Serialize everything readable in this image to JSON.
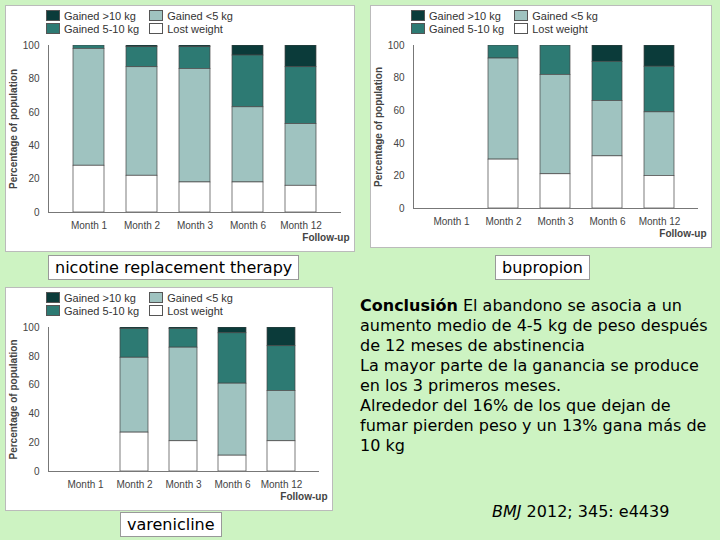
{
  "chart_data": [
    {
      "type": "bar",
      "stacked": true,
      "title": "nicotine replacement therapy",
      "legend": "top",
      "x_label": "Follow-up",
      "y_label": "Percentage of population",
      "categories": [
        "Month 1",
        "Month 2",
        "Month 3",
        "Month 6",
        "Month 12"
      ],
      "ylim": [
        0,
        100
      ],
      "yticks": [
        0,
        20,
        40,
        60,
        80,
        100
      ],
      "series": [
        {
          "name": "Gained >10 kg",
          "color": "#0b3b3a",
          "values": [
            0,
            1,
            1,
            6,
            13
          ]
        },
        {
          "name": "Gained 5-10 kg",
          "color": "#2d7a73",
          "values": [
            2,
            12,
            13,
            31,
            34
          ]
        },
        {
          "name": "Gained <5 kg",
          "color": "#9fc3c0",
          "values": [
            70,
            65,
            68,
            45,
            37
          ]
        },
        {
          "name": "Lost weight",
          "color": "#ffffff",
          "values": [
            28,
            22,
            18,
            18,
            16
          ]
        }
      ]
    },
    {
      "type": "bar",
      "stacked": true,
      "title": "bupropion",
      "legend": "top",
      "x_label": "Follow-up",
      "y_label": "Percentage of population",
      "categories": [
        "Month 1",
        "Month 2",
        "Month 3",
        "Month 6",
        "Month 12"
      ],
      "ylim": [
        0,
        100
      ],
      "yticks": [
        0,
        20,
        40,
        60,
        80,
        100
      ],
      "series": [
        {
          "name": "Gained >10 kg",
          "color": "#0b3b3a",
          "values": [
            null,
            0,
            0,
            10,
            13
          ]
        },
        {
          "name": "Gained 5-10 kg",
          "color": "#2d7a73",
          "values": [
            null,
            8,
            18,
            24,
            28
          ]
        },
        {
          "name": "Gained <5 kg",
          "color": "#9fc3c0",
          "values": [
            null,
            62,
            61,
            34,
            39
          ]
        },
        {
          "name": "Lost weight",
          "color": "#ffffff",
          "values": [
            null,
            30,
            21,
            32,
            20
          ]
        }
      ]
    },
    {
      "type": "bar",
      "stacked": true,
      "title": "varenicline",
      "legend": "top",
      "x_label": "Follow-up",
      "y_label": "Percentage of population",
      "categories": [
        "Month 1",
        "Month 2",
        "Month 3",
        "Month 6",
        "Month 12"
      ],
      "ylim": [
        0,
        100
      ],
      "yticks": [
        0,
        20,
        40,
        60,
        80,
        100
      ],
      "series": [
        {
          "name": "Gained >10 kg",
          "color": "#0b3b3a",
          "values": [
            null,
            1,
            1,
            4,
            13
          ]
        },
        {
          "name": "Gained 5-10 kg",
          "color": "#2d7a73",
          "values": [
            null,
            20,
            13,
            35,
            31
          ]
        },
        {
          "name": "Gained <5 kg",
          "color": "#9fc3c0",
          "values": [
            null,
            52,
            65,
            50,
            35
          ]
        },
        {
          "name": "Lost weight",
          "color": "#ffffff",
          "values": [
            null,
            27,
            21,
            11,
            21
          ]
        }
      ]
    }
  ],
  "conclusion": {
    "heading": "Conclusión",
    "lines": [
      "El abandono se asocia a un aumento medio de 4-5 kg de peso después de 12 meses de abstinencia",
      "La mayor parte de la ganancia se produce en los 3 primeros meses.",
      "Alrededor del 16% de los que dejan de fumar pierden peso y un 13%  gana más de 10 kg"
    ]
  },
  "citation": {
    "journal": "BMJ",
    "reference": "2012; 345: e4439"
  }
}
